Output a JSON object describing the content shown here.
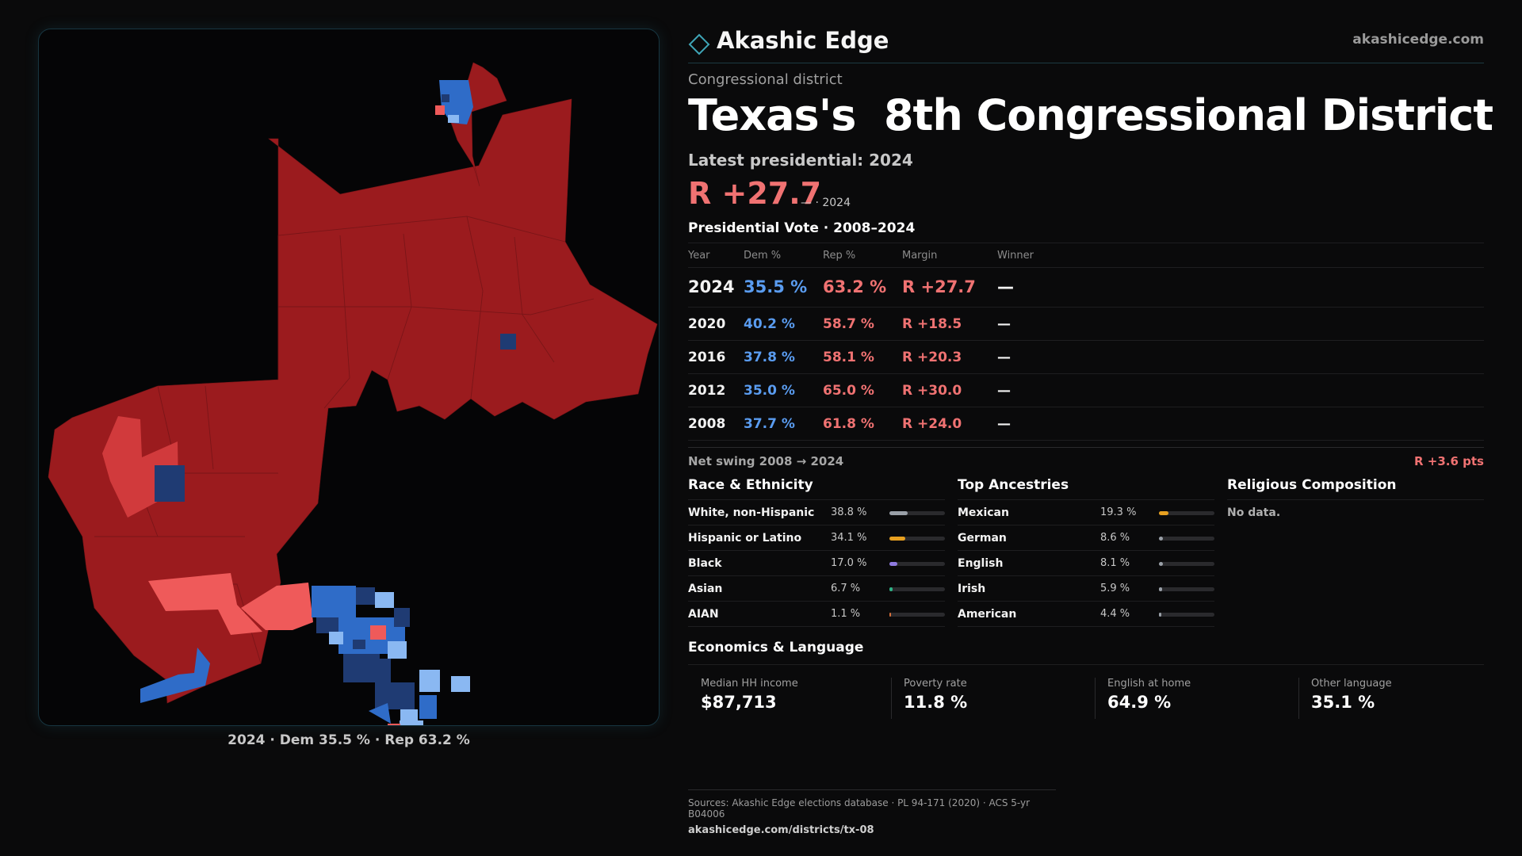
{
  "brand": {
    "name": "Akashic Edge",
    "url": "akashicedge.com"
  },
  "district": {
    "type_label": "Congressional district",
    "title": "Texas's  8th Congressional District"
  },
  "latest": {
    "label": "Latest presidential: 2024",
    "margin": "R +27.7",
    "sub": "— · 2024"
  },
  "vote_table": {
    "title": "Presidential Vote · 2008–2024",
    "headers": {
      "year": "Year",
      "dem": "Dem %",
      "rep": "Rep %",
      "margin": "Margin",
      "winner": "Winner"
    },
    "rows": [
      {
        "year": "2024",
        "dem": "35.5 %",
        "rep": "63.2 %",
        "margin": "R +27.7",
        "winner": "—"
      },
      {
        "year": "2020",
        "dem": "40.2 %",
        "rep": "58.7 %",
        "margin": "R +18.5",
        "winner": "—"
      },
      {
        "year": "2016",
        "dem": "37.8 %",
        "rep": "58.1 %",
        "margin": "R +20.3",
        "winner": "—"
      },
      {
        "year": "2012",
        "dem": "35.0 %",
        "rep": "65.0 %",
        "margin": "R +30.0",
        "winner": "—"
      },
      {
        "year": "2008",
        "dem": "37.7 %",
        "rep": "61.8 %",
        "margin": "R +24.0",
        "winner": "—"
      }
    ]
  },
  "swing": {
    "label": "Net swing 2008 → 2024",
    "value": "R +3.6 pts"
  },
  "race": {
    "title": "Race & Ethnicity",
    "items": [
      {
        "label": "White, non-Hispanic",
        "pct": "38.8 %",
        "value": 38.8,
        "color": "#9aa0a8"
      },
      {
        "label": "Hispanic or Latino",
        "pct": "34.1 %",
        "value": 34.1,
        "color": "#e7a020"
      },
      {
        "label": "Black",
        "pct": "17.0 %",
        "value": 17.0,
        "color": "#8f7be0"
      },
      {
        "label": "Asian",
        "pct": "6.7 %",
        "value": 6.7,
        "color": "#2fb386"
      },
      {
        "label": "AIAN",
        "pct": "1.1 %",
        "value": 1.1,
        "color": "#d8703a"
      }
    ]
  },
  "ancestry": {
    "title": "Top Ancestries",
    "items": [
      {
        "label": "Mexican",
        "pct": "19.3 %",
        "value": 19.3,
        "color": "#e7a020"
      },
      {
        "label": "German",
        "pct": "8.6 %",
        "value": 8.6,
        "color": "#9aa0a8"
      },
      {
        "label": "English",
        "pct": "8.1 %",
        "value": 8.1,
        "color": "#9aa0a8"
      },
      {
        "label": "Irish",
        "pct": "5.9 %",
        "value": 5.9,
        "color": "#9aa0a8"
      },
      {
        "label": "American",
        "pct": "4.4 %",
        "value": 4.4,
        "color": "#9aa0a8"
      }
    ]
  },
  "religion": {
    "title": "Religious Composition",
    "note": "No data."
  },
  "economics": {
    "title": "Economics & Language",
    "cards": [
      {
        "label": "Median HH income",
        "value": "$87,713"
      },
      {
        "label": "Poverty rate",
        "value": "11.8 %"
      },
      {
        "label": "English at home",
        "value": "64.9 %"
      },
      {
        "label": "Other language",
        "value": "35.1 %"
      }
    ]
  },
  "map": {
    "caption": "2024 · Dem 35.5 % · Rep 63.2 %",
    "colors": {
      "strong_rep": "#9b1b1e",
      "lean_rep": "#d13a3c",
      "light_rep": "#ef5a5a",
      "strong_dem": "#1f3b73",
      "lean_dem": "#2f6cc8",
      "light_dem": "#8ab8f2"
    }
  },
  "footer": {
    "sources": "Sources: Akashic Edge elections database · PL 94-171 (2020) · ACS 5-yr B04006",
    "url": "akashicedge.com/districts/tx-08"
  }
}
